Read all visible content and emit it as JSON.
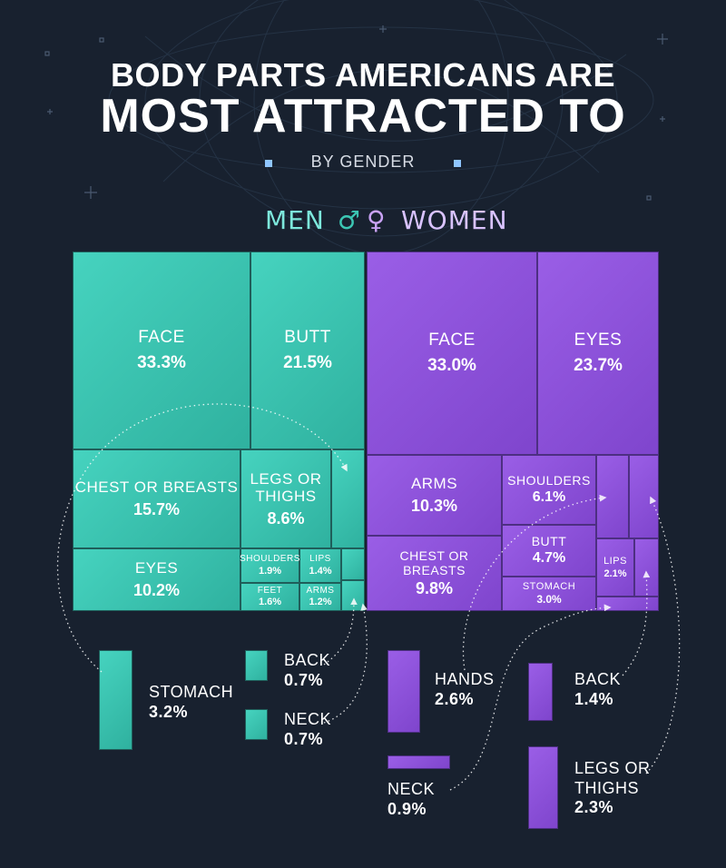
{
  "title_line1": "BODY PARTS AMERICANS ARE",
  "title_line2": "MOST ATTRACTED TO",
  "subtitle": "BY GENDER",
  "legend": {
    "men": "MEN",
    "men_symbol": "♂",
    "women_symbol": "♀",
    "women": "WOMEN"
  },
  "colors": {
    "men": "#3cc6b3",
    "women": "#8e52de",
    "background": "#18212f"
  },
  "chart_data": [
    {
      "type": "treemap",
      "name": "MEN",
      "unit": "%",
      "items": [
        {
          "label": "FACE",
          "value": 33.3,
          "display": "33.3%"
        },
        {
          "label": "BUTT",
          "value": 21.5,
          "display": "21.5%"
        },
        {
          "label": "CHEST OR BREASTS",
          "value": 15.7,
          "display": "15.7%"
        },
        {
          "label": "EYES",
          "value": 10.2,
          "display": "10.2%"
        },
        {
          "label": "LEGS OR THIGHS",
          "value": 8.6,
          "display": "8.6%"
        },
        {
          "label": "STOMACH",
          "value": 3.2,
          "display": "3.2%"
        },
        {
          "label": "SHOULDERS",
          "value": 1.9,
          "display": "1.9%"
        },
        {
          "label": "FEET",
          "value": 1.6,
          "display": "1.6%"
        },
        {
          "label": "LIPS",
          "value": 1.4,
          "display": "1.4%"
        },
        {
          "label": "ARMS",
          "value": 1.2,
          "display": "1.2%"
        },
        {
          "label": "BACK",
          "value": 0.7,
          "display": "0.7%"
        },
        {
          "label": "NECK",
          "value": 0.7,
          "display": "0.7%"
        }
      ]
    },
    {
      "type": "treemap",
      "name": "WOMEN",
      "unit": "%",
      "items": [
        {
          "label": "FACE",
          "value": 33.0,
          "display": "33.0%"
        },
        {
          "label": "EYES",
          "value": 23.7,
          "display": "23.7%"
        },
        {
          "label": "ARMS",
          "value": 10.3,
          "display": "10.3%"
        },
        {
          "label": "CHEST OR BREASTS",
          "value": 9.8,
          "display": "9.8%"
        },
        {
          "label": "SHOULDERS",
          "value": 6.1,
          "display": "6.1%"
        },
        {
          "label": "BUTT",
          "value": 4.7,
          "display": "4.7%"
        },
        {
          "label": "STOMACH",
          "value": 3.0,
          "display": "3.0%"
        },
        {
          "label": "HANDS",
          "value": 2.6,
          "display": "2.6%"
        },
        {
          "label": "LEGS OR THIGHS",
          "value": 2.3,
          "display": "2.3%"
        },
        {
          "label": "LIPS",
          "value": 2.1,
          "display": "2.1%"
        },
        {
          "label": "BACK",
          "value": 1.4,
          "display": "1.4%"
        },
        {
          "label": "NECK",
          "value": 0.9,
          "display": "0.9%"
        }
      ]
    }
  ]
}
